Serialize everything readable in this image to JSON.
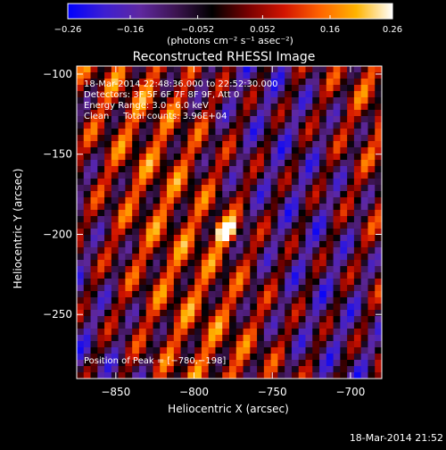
{
  "chart_data": {
    "type": "heatmap",
    "title": "Reconstructed RHESSI Image",
    "xlabel": "Heliocentric X (arcsec)",
    "ylabel": "Heliocentric Y (arcsec)",
    "x_range": [
      -875,
      -680
    ],
    "y_range": [
      -290,
      -95
    ],
    "x_ticks": [
      -850,
      -800,
      -750,
      -700
    ],
    "y_ticks": [
      -100,
      -150,
      -200,
      -250
    ],
    "x_tick_labels": [
      "−850",
      "−800",
      "−750",
      "−700"
    ],
    "y_tick_labels": [
      "−100",
      "−150",
      "−200",
      "−250"
    ],
    "colorbar": {
      "range": [
        -0.26,
        0.26
      ],
      "tick_labels": [
        "−0.26",
        "−0.16",
        "−0.052",
        "0.052",
        "0.16",
        "0.26"
      ],
      "ticks": [
        -0.26,
        -0.16,
        -0.052,
        0.052,
        0.16,
        0.26
      ],
      "unit_label": "(photons cm⁻² s⁻¹ asec⁻²)"
    },
    "info_lines": [
      "18-Mar-2014 22:48:36.000 to 22:52:30.000",
      "Detectors: 3F 5F 6F 7F 8F 9F, Att 0",
      "Energy Range: 3.0 - 6.0 keV",
      "Clean     Total counts: 3.96E+04"
    ],
    "peak_label": "Position of Peak = [−780,−198]",
    "peak": {
      "x": -780,
      "y": -198
    },
    "colors": {
      "cmap": [
        "#0000ff",
        "#3c1ed2",
        "#5f28a0",
        "#3c1450",
        "#000000",
        "#780000",
        "#d21400",
        "#ff6400",
        "#ffb400",
        "#ffffff"
      ]
    }
  },
  "footer": {
    "timestamp": "18-Mar-2014 21:52"
  }
}
